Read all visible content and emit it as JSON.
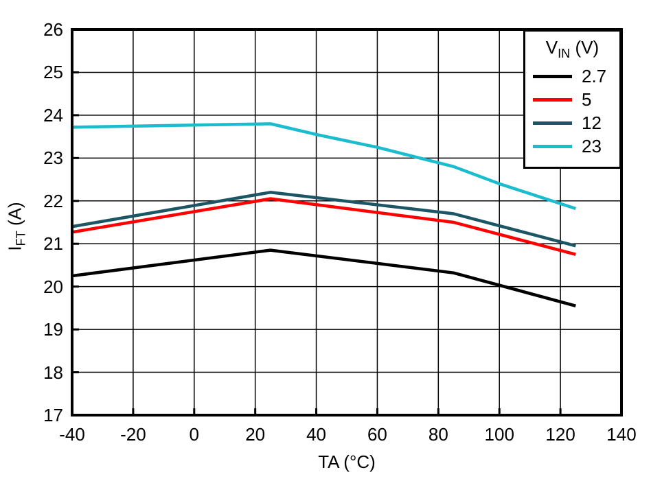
{
  "chart_data": {
    "type": "line",
    "xlabel": "TA (°C)",
    "ylabel": {
      "main": "I",
      "sub": "FT",
      "suffix": " (A)"
    },
    "xlim": [
      -40,
      140
    ],
    "ylim": [
      17,
      26
    ],
    "xticks": [
      -40,
      -20,
      0,
      20,
      40,
      60,
      80,
      100,
      120,
      140
    ],
    "yticks": [
      17,
      18,
      19,
      20,
      21,
      22,
      23,
      24,
      25,
      26
    ],
    "grid": true,
    "legend": {
      "position": "top-right",
      "title": {
        "main": "V",
        "sub": "IN",
        "suffix": " (V)"
      }
    },
    "series": [
      {
        "name": "2.7",
        "color": "#000000",
        "points": [
          [
            -40,
            20.25
          ],
          [
            25,
            20.85
          ],
          [
            85,
            20.32
          ],
          [
            125,
            19.55
          ]
        ]
      },
      {
        "name": "5",
        "color": "#fe0000",
        "points": [
          [
            -40,
            21.27
          ],
          [
            25,
            22.05
          ],
          [
            85,
            21.5
          ],
          [
            125,
            20.75
          ]
        ]
      },
      {
        "name": "12",
        "color": "#1c5564",
        "points": [
          [
            -40,
            21.4
          ],
          [
            25,
            22.2
          ],
          [
            85,
            21.7
          ],
          [
            125,
            20.95
          ]
        ]
      },
      {
        "name": "23",
        "color": "#1bbccd",
        "points": [
          [
            -40,
            23.72
          ],
          [
            0,
            23.77
          ],
          [
            25,
            23.8
          ],
          [
            40,
            23.55
          ],
          [
            60,
            23.25
          ],
          [
            85,
            22.8
          ],
          [
            100,
            22.4
          ],
          [
            125,
            21.82
          ]
        ]
      }
    ]
  }
}
